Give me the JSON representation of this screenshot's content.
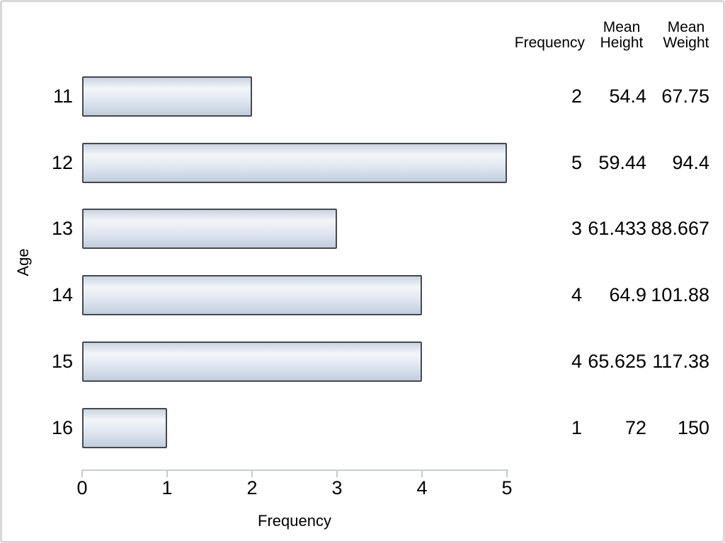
{
  "chart_data": {
    "type": "bar",
    "orientation": "horizontal",
    "title": "",
    "xlabel": "Frequency",
    "ylabel": "Age",
    "categories": [
      "11",
      "12",
      "13",
      "14",
      "15",
      "16"
    ],
    "values": [
      2,
      5,
      3,
      4,
      4,
      1
    ],
    "xlim": [
      0,
      5
    ],
    "xticks": [
      "0",
      "1",
      "2",
      "3",
      "4",
      "5"
    ],
    "grid": false,
    "legend": "none",
    "stats_table": {
      "headers": [
        {
          "top": "",
          "bottom": "Frequency"
        },
        {
          "top": "Mean",
          "bottom": "Height"
        },
        {
          "top": "Mean",
          "bottom": "Weight"
        }
      ],
      "rows": [
        {
          "age": "11",
          "frequency": "2",
          "mean_height": "54.4",
          "mean_weight": "67.75"
        },
        {
          "age": "12",
          "frequency": "5",
          "mean_height": "59.44",
          "mean_weight": "94.4"
        },
        {
          "age": "13",
          "frequency": "3",
          "mean_height": "61.433",
          "mean_weight": "88.667"
        },
        {
          "age": "14",
          "frequency": "4",
          "mean_height": "64.9",
          "mean_weight": "101.88"
        },
        {
          "age": "15",
          "frequency": "4",
          "mean_height": "65.625",
          "mean_weight": "117.38"
        },
        {
          "age": "16",
          "frequency": "1",
          "mean_height": "72",
          "mean_weight": "150"
        }
      ]
    }
  },
  "colors": {
    "frame_border": "#d9d9d9",
    "background": "#ffffff",
    "text": "#000000",
    "axis_line": "#c8ccd0",
    "bar_border": "#45494f",
    "bar_grad_top": "#cbd3df",
    "bar_grad_light": "#f2f6fa",
    "bar_grad_mid": "#e4eaf2",
    "bar_grad_bottom": "#c2cede"
  }
}
